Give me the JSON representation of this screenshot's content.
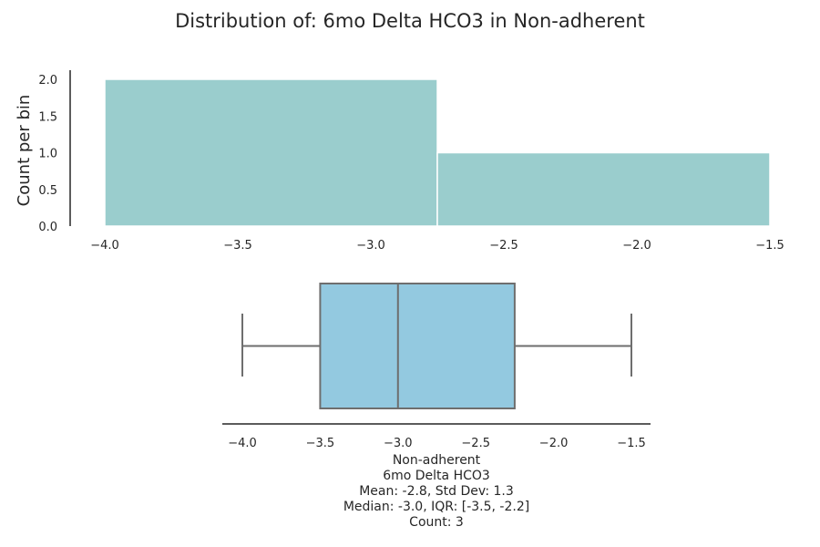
{
  "title": "Distribution of: 6mo Delta HCO3 in Non-adherent",
  "colors": {
    "hist_bar": "#9ACDCD",
    "box_fill": "#93C9E0",
    "box_line": "#6E6E6E",
    "axis": "#262626"
  },
  "chart_data": [
    {
      "type": "histogram",
      "ylabel": "Count per bin",
      "xlim": [
        -4.0,
        -1.5
      ],
      "ylim": [
        0,
        2.0
      ],
      "x_ticks": [
        "-4.0",
        "-3.5",
        "-3.0",
        "-2.5",
        "-2.0",
        "-1.5"
      ],
      "y_ticks": [
        "0.0",
        "0.5",
        "1.0",
        "1.5",
        "2.0"
      ],
      "bins": [
        {
          "x0": -4.0,
          "x1": -2.75,
          "count": 2
        },
        {
          "x0": -2.75,
          "x1": -1.5,
          "count": 1
        }
      ]
    },
    {
      "type": "box",
      "whisker_low": -4.0,
      "q1": -3.5,
      "median": -3.0,
      "q3": -2.25,
      "whisker_high": -1.5,
      "x_ticks": [
        "-4.0",
        "-3.5",
        "-3.0",
        "-2.5",
        "-2.0",
        "-1.5"
      ],
      "xlabel_lines": [
        "Non-adherent",
        "6mo Delta HCO3",
        "Mean: -2.8, Std Dev: 1.3",
        "Median: -3.0, IQR: [-3.5, -2.2]",
        "Count: 3"
      ]
    }
  ]
}
